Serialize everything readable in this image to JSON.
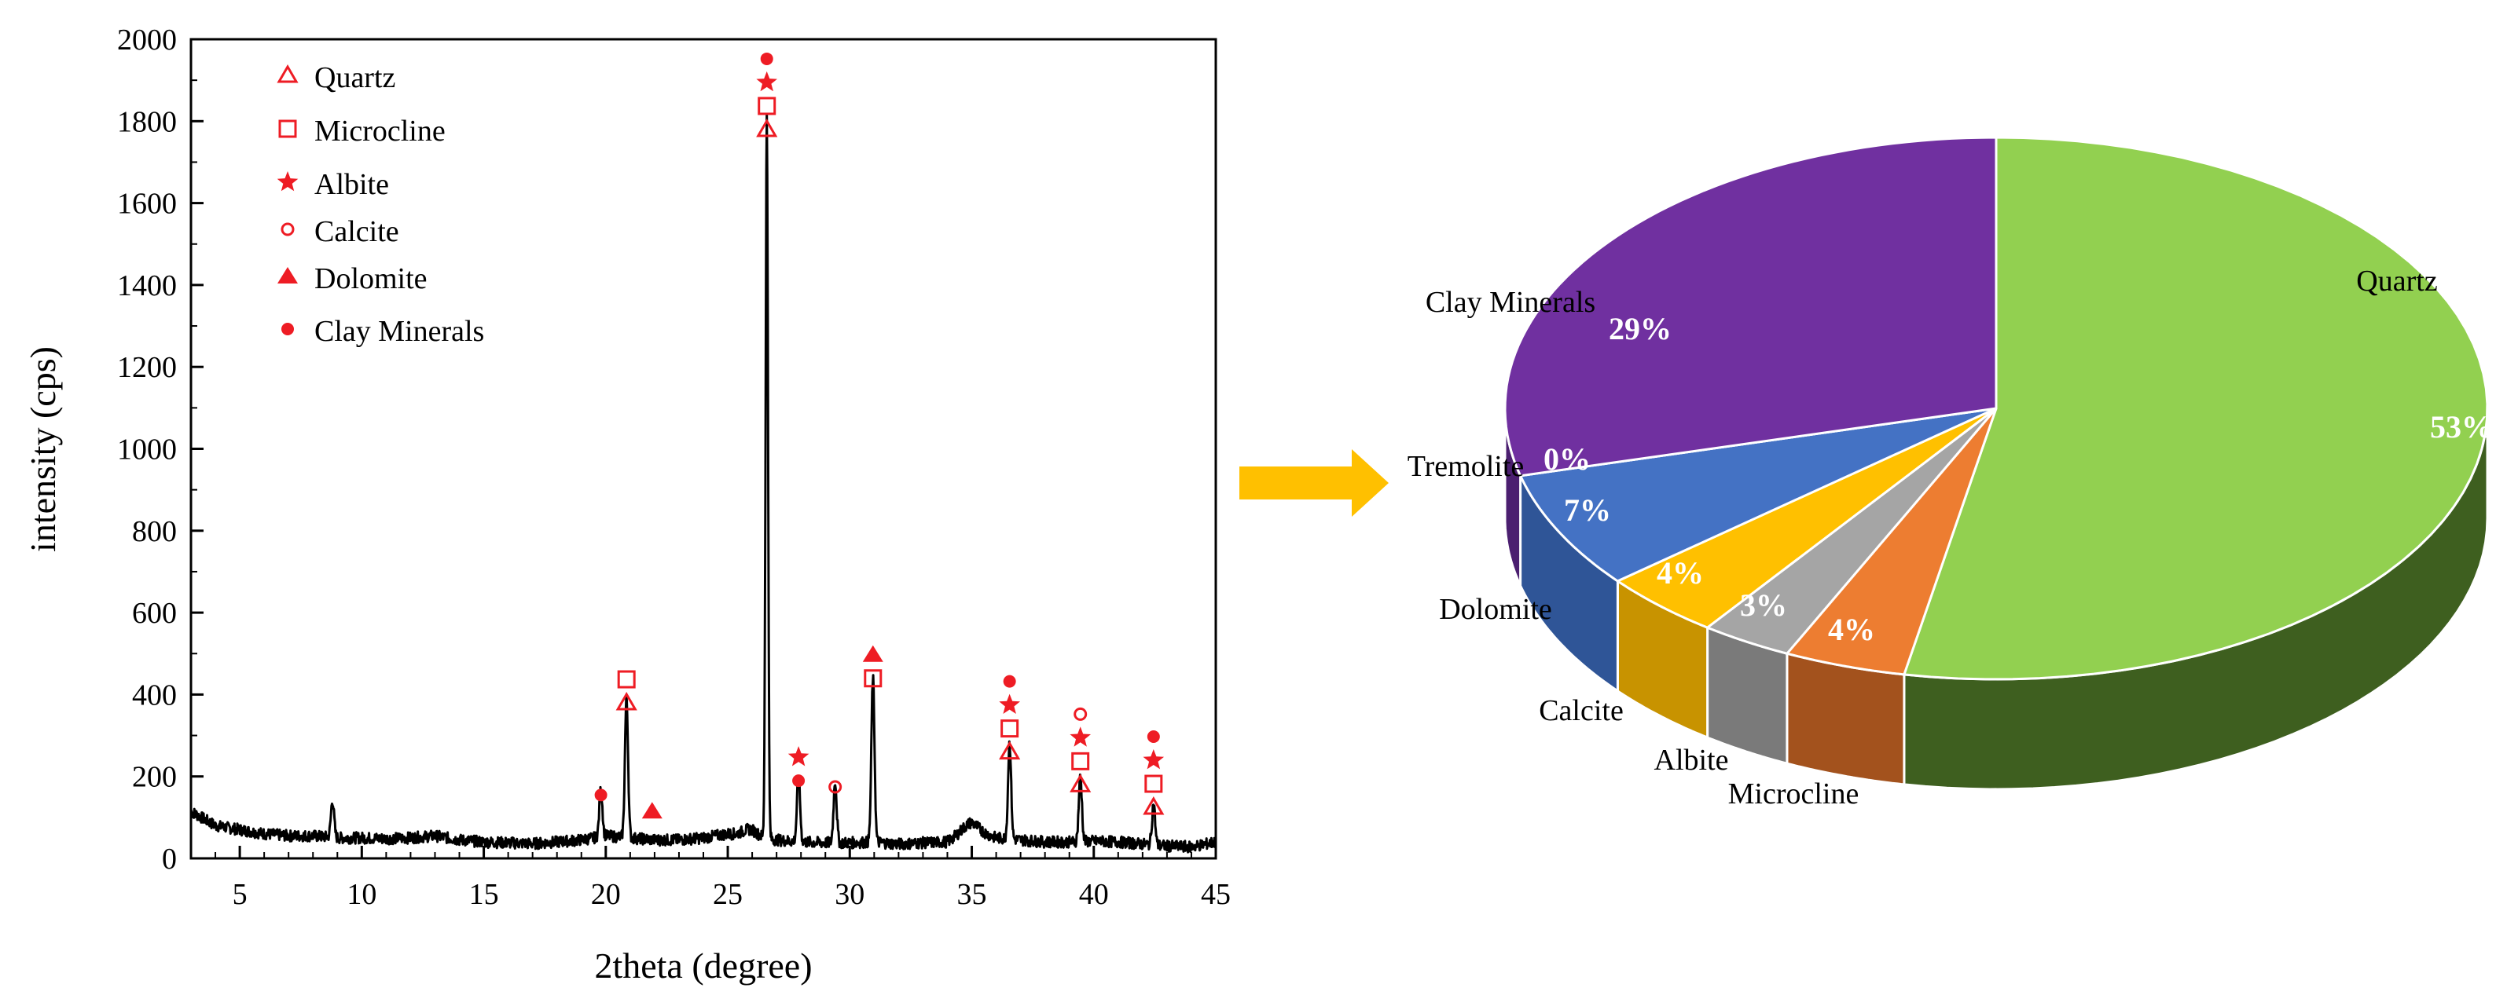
{
  "chart_data": [
    {
      "type": "line",
      "title": "",
      "xlabel": "2theta (degree)",
      "ylabel": "intensity (cps)",
      "xlim": [
        3,
        45
      ],
      "ylim": [
        0,
        2000
      ],
      "x_ticks": [
        5,
        10,
        15,
        20,
        25,
        30,
        35,
        40,
        45
      ],
      "y_ticks": [
        0,
        200,
        400,
        600,
        800,
        1000,
        1200,
        1400,
        1600,
        1800,
        2000
      ],
      "baseline": [
        [
          3,
          115
        ],
        [
          4,
          80
        ],
        [
          5,
          70
        ],
        [
          6,
          60
        ],
        [
          7,
          55
        ],
        [
          8,
          55
        ],
        [
          9,
          50
        ],
        [
          10,
          50
        ],
        [
          11,
          48
        ],
        [
          12,
          50
        ],
        [
          13,
          55
        ],
        [
          14,
          45
        ],
        [
          15,
          40
        ],
        [
          16,
          38
        ],
        [
          17,
          36
        ],
        [
          18,
          40
        ],
        [
          19,
          45
        ],
        [
          20,
          55
        ],
        [
          21,
          50
        ],
        [
          22,
          45
        ],
        [
          23,
          45
        ],
        [
          24,
          50
        ],
        [
          25,
          60
        ],
        [
          26,
          55
        ],
        [
          27,
          45
        ],
        [
          28,
          40
        ],
        [
          29,
          38
        ],
        [
          30,
          38
        ],
        [
          31,
          40
        ],
        [
          32,
          35
        ],
        [
          33,
          38
        ],
        [
          34,
          40
        ],
        [
          35,
          70
        ],
        [
          36,
          50
        ],
        [
          37,
          45
        ],
        [
          38,
          40
        ],
        [
          39,
          40
        ],
        [
          40,
          42
        ],
        [
          41,
          40
        ],
        [
          42,
          35
        ],
        [
          43,
          30
        ],
        [
          44,
          28
        ],
        [
          45,
          40
        ]
      ],
      "peaks": [
        {
          "x": 8.8,
          "y": 90
        },
        {
          "x": 19.8,
          "y": 115
        },
        {
          "x": 20.85,
          "y": 340
        },
        {
          "x": 26.6,
          "y": 1760
        },
        {
          "x": 27.9,
          "y": 160
        },
        {
          "x": 29.4,
          "y": 150
        },
        {
          "x": 30.95,
          "y": 400
        },
        {
          "x": 36.55,
          "y": 235
        },
        {
          "x": 39.45,
          "y": 160
        },
        {
          "x": 42.45,
          "y": 100
        }
      ],
      "legend": [
        {
          "symbol": "triangle-open",
          "label": "Quartz"
        },
        {
          "symbol": "square-open",
          "label": "Microcline"
        },
        {
          "symbol": "star",
          "label": "Albite"
        },
        {
          "symbol": "circle-open",
          "label": "Calcite"
        },
        {
          "symbol": "triangle-filled",
          "label": "Dolomite"
        },
        {
          "symbol": "circle-filled",
          "label": "Clay Minerals"
        }
      ],
      "peak_markers": [
        {
          "x": 19.8,
          "stack": [
            "circle-filled"
          ],
          "start_y": 145
        },
        {
          "x": 20.85,
          "stack": [
            "triangle-open",
            "square-open"
          ],
          "start_y": 370
        },
        {
          "x": 21.9,
          "stack": [
            "triangle-filled"
          ],
          "start_y": 105
        },
        {
          "x": 26.6,
          "stack": [
            "triangle-open",
            "square-open",
            "star",
            "circle-filled"
          ],
          "start_y": 1770
        },
        {
          "x": 27.9,
          "stack": [
            "circle-filled",
            "star"
          ],
          "start_y": 180
        },
        {
          "x": 29.4,
          "stack": [
            "circle-open"
          ],
          "start_y": 165
        },
        {
          "x": 30.95,
          "stack": [
            "square-open",
            "triangle-filled"
          ],
          "start_y": 430
        },
        {
          "x": 36.55,
          "stack": [
            "triangle-open",
            "square-open",
            "star",
            "circle-filled"
          ],
          "start_y": 250
        },
        {
          "x": 39.45,
          "stack": [
            "triangle-open",
            "square-open",
            "star",
            "circle-open"
          ],
          "start_y": 170
        },
        {
          "x": 42.45,
          "stack": [
            "triangle-open",
            "square-open",
            "star",
            "circle-filled"
          ],
          "start_y": 115
        }
      ],
      "marker_color": "#ee1c24"
    },
    {
      "type": "pie",
      "style": "3d",
      "slices": [
        {
          "label": "Quartz",
          "value": 53,
          "pct_label": "53%",
          "color": "#92d050"
        },
        {
          "label": "Microcline",
          "value": 4,
          "pct_label": "4%",
          "color": "#ed7d31"
        },
        {
          "label": "Albite",
          "value": 3,
          "pct_label": "3%",
          "color": "#a5a5a5"
        },
        {
          "label": "Calcite",
          "value": 4,
          "pct_label": "4%",
          "color": "#ffc000"
        },
        {
          "label": "Dolomite",
          "value": 7,
          "pct_label": "7%",
          "color": "#4472c4"
        },
        {
          "label": "Tremolite",
          "value": 0,
          "pct_label": "0%",
          "color": "#264478"
        },
        {
          "label": "Clay Minerals",
          "value": 29,
          "pct_label": "29%",
          "color": "#7030a0"
        }
      ],
      "side_colors": {
        "Quartz": "#3e5f1f",
        "Microcline": "#a3521d",
        "Albite": "#7a7a7a",
        "Calcite": "#c89300",
        "Dolomite": "#2f5597",
        "Tremolite": "#1d3557",
        "Clay Minerals": "#4b1f70"
      }
    }
  ],
  "arrow_color": "#ffc000"
}
